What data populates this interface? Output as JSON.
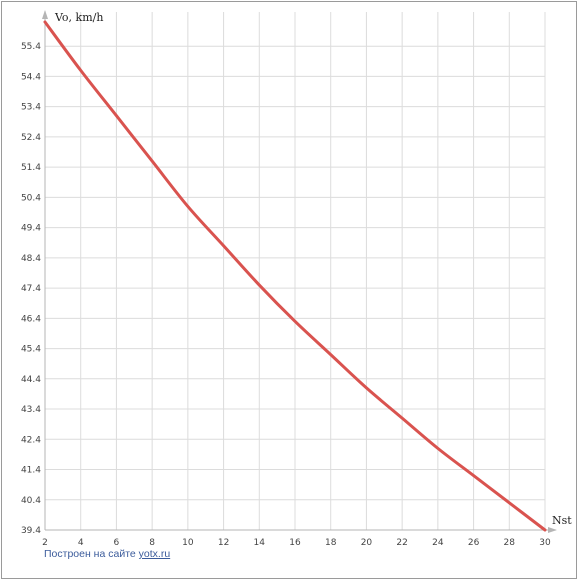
{
  "chart_data": {
    "type": "line",
    "xlabel": "Nst",
    "ylabel": "Vo, km/h",
    "xlim": [
      2,
      30
    ],
    "ylim": [
      39.4,
      56.2
    ],
    "xticks": [
      "2",
      "4",
      "6",
      "8",
      "10",
      "12",
      "14",
      "16",
      "18",
      "20",
      "22",
      "24",
      "26",
      "28",
      "30"
    ],
    "yticks": [
      "39.4",
      "40.4",
      "41.4",
      "42.4",
      "43.4",
      "44.4",
      "45.4",
      "46.4",
      "47.4",
      "48.4",
      "49.4",
      "50.4",
      "51.4",
      "52.4",
      "53.4",
      "54.4",
      "55.4"
    ],
    "grid": true,
    "series": [
      {
        "color": "#d9534f",
        "x": [
          2,
          4,
          6,
          8,
          10,
          12,
          14,
          16,
          18,
          20,
          22,
          24,
          26,
          28,
          30
        ],
        "y": [
          56.2,
          54.6,
          53.1,
          51.6,
          50.1,
          48.8,
          47.5,
          46.3,
          45.2,
          44.1,
          43.1,
          42.1,
          41.2,
          40.3,
          39.4
        ]
      }
    ]
  },
  "footer": {
    "credit_prefix": "Построен на сайте",
    "credit_link": "yotx.ru"
  }
}
